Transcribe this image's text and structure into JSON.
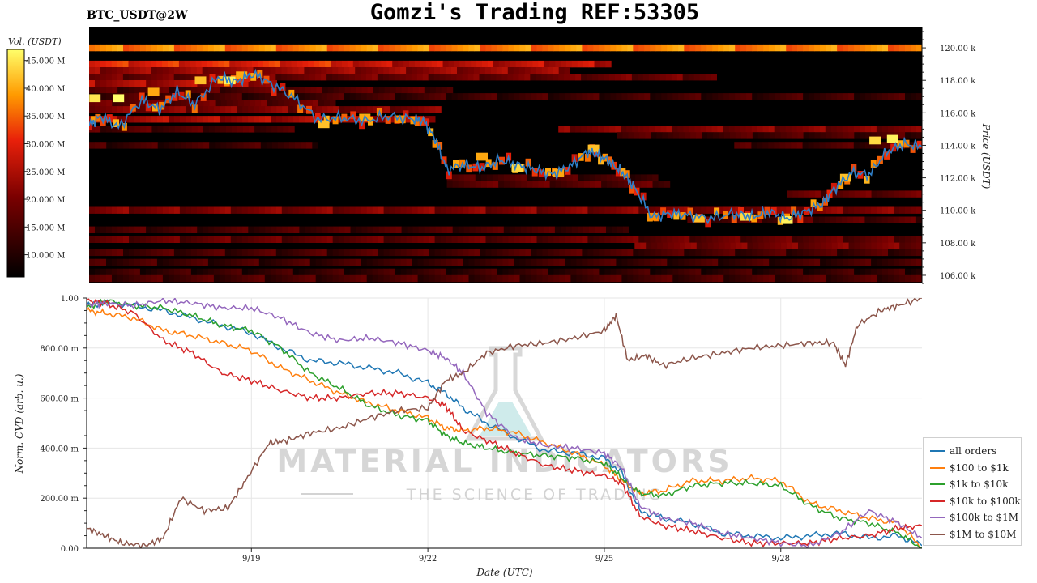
{
  "title": "Gomzi's Trading REF:53305",
  "symbol": "BTC_USDT@2W",
  "watermark": {
    "line1": "MATERIAL INDICATORS",
    "line2": "THE SCIENCE OF TRADING"
  },
  "chart_data": [
    {
      "type": "heatmap",
      "colorbar_label": "Vol. (USDT)",
      "colorbar_ticks": [
        "45.000 M",
        "40.000 M",
        "35.000 M",
        "30.000 M",
        "25.000 M",
        "20.000 M",
        "15.000 M",
        "10.000 M"
      ],
      "colorbar_values": [
        45,
        40,
        35,
        30,
        25,
        20,
        15,
        10
      ],
      "colorbar_range": [
        6,
        47
      ],
      "ylabel": "Price (USDT)",
      "y_ticks": [
        "120.00 k",
        "118.00 k",
        "116.00 k",
        "114.00 k",
        "112.00 k",
        "110.00 k",
        "108.00 k",
        "106.00 k"
      ],
      "y_tick_values": [
        120,
        118,
        116,
        114,
        112,
        110,
        108,
        106
      ],
      "ylim": [
        105.5,
        121.3
      ],
      "x_days": [
        16.3,
        30.5
      ],
      "price_line": {
        "color": "#2f7fc8",
        "x": [
          16.3,
          16.5,
          16.8,
          17.2,
          17.5,
          17.8,
          18.1,
          18.5,
          18.8,
          19.1,
          19.4,
          19.8,
          20.2,
          20.6,
          21.0,
          21.4,
          21.8,
          22.0,
          22.2,
          22.4,
          22.7,
          23.0,
          23.3,
          23.6,
          23.9,
          24.2,
          24.5,
          24.8,
          25.0,
          25.2,
          25.4,
          25.6,
          25.9,
          26.2,
          26.5,
          26.9,
          27.3,
          27.6,
          27.9,
          28.2,
          28.5,
          28.8,
          29.0,
          29.3,
          29.6,
          29.9,
          30.2,
          30.5
        ],
        "y": [
          115.2,
          115.8,
          115.1,
          116.8,
          116.2,
          117.3,
          116.5,
          118.2,
          117.9,
          118.4,
          117.8,
          116.9,
          115.6,
          115.7,
          115.5,
          115.8,
          115.6,
          115.5,
          114.4,
          112.5,
          112.8,
          112.6,
          113.1,
          112.8,
          112.5,
          112.2,
          112.7,
          113.6,
          113.4,
          112.9,
          112.3,
          111.4,
          109.6,
          109.8,
          109.7,
          109.5,
          109.8,
          109.6,
          109.9,
          109.5,
          109.9,
          110.4,
          111.3,
          112.3,
          112.2,
          113.6,
          114.1,
          113.9
        ]
      },
      "liquidity_bands": [
        {
          "price": 120.0,
          "x0": 16.3,
          "x1": 30.5,
          "level": 37
        },
        {
          "price": 119.0,
          "x0": 16.3,
          "x1": 20.8,
          "level": 30
        },
        {
          "price": 119.0,
          "x0": 20.8,
          "x1": 25.2,
          "level": 26
        },
        {
          "price": 118.6,
          "x0": 16.3,
          "x1": 24.5,
          "level": 22
        },
        {
          "price": 118.2,
          "x0": 16.3,
          "x1": 27.0,
          "level": 18
        },
        {
          "price": 117.8,
          "x0": 16.3,
          "x1": 19.5,
          "level": 24
        },
        {
          "price": 117.4,
          "x0": 16.3,
          "x1": 22.5,
          "level": 15
        },
        {
          "price": 117.0,
          "x0": 16.3,
          "x1": 30.5,
          "level": 13
        },
        {
          "price": 116.6,
          "x0": 16.3,
          "x1": 20.5,
          "level": 17
        },
        {
          "price": 116.2,
          "x0": 16.3,
          "x1": 22.3,
          "level": 20
        },
        {
          "price": 115.6,
          "x0": 16.3,
          "x1": 22.2,
          "level": 24
        },
        {
          "price": 115.0,
          "x0": 16.3,
          "x1": 19.8,
          "level": 15
        },
        {
          "price": 115.0,
          "x0": 24.3,
          "x1": 30.5,
          "level": 20
        },
        {
          "price": 114.6,
          "x0": 25.3,
          "x1": 30.5,
          "level": 14
        },
        {
          "price": 114.0,
          "x0": 16.3,
          "x1": 20.2,
          "level": 13
        },
        {
          "price": 114.0,
          "x0": 27.3,
          "x1": 30.5,
          "level": 14
        },
        {
          "price": 112.0,
          "x0": 22.4,
          "x1": 26.0,
          "level": 14
        },
        {
          "price": 111.6,
          "x0": 22.4,
          "x1": 26.2,
          "level": 16
        },
        {
          "price": 111.0,
          "x0": 28.2,
          "x1": 30.5,
          "level": 17
        },
        {
          "price": 110.0,
          "x0": 16.3,
          "x1": 30.5,
          "level": 20
        },
        {
          "price": 109.4,
          "x0": 26.5,
          "x1": 30.5,
          "level": 15
        },
        {
          "price": 108.8,
          "x0": 16.3,
          "x1": 25.5,
          "level": 14
        },
        {
          "price": 108.2,
          "x0": 16.3,
          "x1": 30.5,
          "level": 17
        },
        {
          "price": 107.8,
          "x0": 25.6,
          "x1": 30.5,
          "level": 19
        },
        {
          "price": 107.4,
          "x0": 16.3,
          "x1": 30.5,
          "level": 14
        },
        {
          "price": 106.8,
          "x0": 16.3,
          "x1": 30.5,
          "level": 13
        },
        {
          "price": 106.2,
          "x0": 16.3,
          "x1": 30.5,
          "level": 12
        },
        {
          "price": 105.8,
          "x0": 16.3,
          "x1": 30.5,
          "level": 14
        }
      ],
      "hot_cells": [
        {
          "x": 16.4,
          "price": 116.9,
          "level": 45
        },
        {
          "x": 16.8,
          "price": 116.9,
          "level": 47
        },
        {
          "x": 17.4,
          "price": 117.3,
          "level": 40
        },
        {
          "x": 18.2,
          "price": 118.0,
          "level": 42
        },
        {
          "x": 18.7,
          "price": 118.0,
          "level": 46
        },
        {
          "x": 18.9,
          "price": 118.3,
          "level": 40
        },
        {
          "x": 20.3,
          "price": 115.3,
          "level": 42
        },
        {
          "x": 21.0,
          "price": 115.7,
          "level": 40
        },
        {
          "x": 21.6,
          "price": 115.6,
          "level": 38
        },
        {
          "x": 23.0,
          "price": 113.3,
          "level": 40
        },
        {
          "x": 23.6,
          "price": 112.6,
          "level": 44
        },
        {
          "x": 24.3,
          "price": 112.3,
          "level": 40
        },
        {
          "x": 24.9,
          "price": 113.8,
          "level": 42
        },
        {
          "x": 25.9,
          "price": 109.6,
          "level": 38
        },
        {
          "x": 26.7,
          "price": 109.5,
          "level": 42
        },
        {
          "x": 27.5,
          "price": 109.6,
          "level": 44
        },
        {
          "x": 28.2,
          "price": 109.4,
          "level": 46
        },
        {
          "x": 29.2,
          "price": 112.0,
          "level": 42
        },
        {
          "x": 29.7,
          "price": 114.3,
          "level": 44
        },
        {
          "x": 30.0,
          "price": 114.4,
          "level": 46
        }
      ]
    },
    {
      "type": "line",
      "ylabel": "Norm. CVD (arb. u.)",
      "xlabel": "Date (UTC)",
      "x_ticks": [
        "9/19",
        "9/22",
        "9/25",
        "9/28"
      ],
      "x_tick_values": [
        19,
        22,
        25,
        28
      ],
      "xlim": [
        16.2,
        30.4
      ],
      "y_ticks": [
        "1.00",
        "800.00 m",
        "600.00 m",
        "400.00 m",
        "200.00 m",
        "0.00"
      ],
      "y_tick_values": [
        1.0,
        0.8,
        0.6,
        0.4,
        0.2,
        0.0
      ],
      "ylim": [
        0,
        1.0
      ],
      "grid": true,
      "legend_position": "right",
      "series": [
        {
          "name": "all orders",
          "color": "#1f77b4",
          "x": [
            16.2,
            16.5,
            17.0,
            17.5,
            18.0,
            18.5,
            19.0,
            19.5,
            20.0,
            20.5,
            21.0,
            21.5,
            22.0,
            22.3,
            22.6,
            23.0,
            23.5,
            24.0,
            24.5,
            25.0,
            25.3,
            25.6,
            26.0,
            26.5,
            27.0,
            27.5,
            28.0,
            28.5,
            29.0,
            29.5,
            30.0,
            30.4
          ],
          "y": [
            0.97,
            0.98,
            0.97,
            0.95,
            0.92,
            0.89,
            0.86,
            0.8,
            0.75,
            0.74,
            0.72,
            0.7,
            0.66,
            0.62,
            0.56,
            0.5,
            0.44,
            0.39,
            0.38,
            0.36,
            0.3,
            0.15,
            0.12,
            0.1,
            0.06,
            0.05,
            0.04,
            0.05,
            0.06,
            0.04,
            0.05,
            0.01
          ]
        },
        {
          "name": "$100 to $1k",
          "color": "#ff7f0e",
          "x": [
            16.2,
            16.5,
            17.0,
            17.5,
            18.0,
            18.5,
            19.0,
            19.5,
            20.0,
            20.5,
            21.0,
            21.5,
            22.0,
            22.3,
            22.6,
            23.0,
            23.5,
            24.0,
            24.5,
            25.0,
            25.3,
            25.6,
            26.0,
            26.5,
            27.0,
            27.5,
            28.0,
            28.5,
            29.0,
            29.5,
            30.0,
            30.4
          ],
          "y": [
            0.95,
            0.94,
            0.92,
            0.87,
            0.85,
            0.82,
            0.79,
            0.72,
            0.67,
            0.62,
            0.58,
            0.55,
            0.52,
            0.48,
            0.47,
            0.48,
            0.46,
            0.42,
            0.38,
            0.33,
            0.27,
            0.22,
            0.23,
            0.27,
            0.27,
            0.28,
            0.27,
            0.18,
            0.15,
            0.12,
            0.1,
            0.0
          ]
        },
        {
          "name": "$1k to $10k",
          "color": "#2ca02c",
          "x": [
            16.2,
            16.5,
            17.0,
            17.5,
            18.0,
            18.5,
            19.0,
            19.5,
            20.0,
            20.5,
            21.0,
            21.5,
            22.0,
            22.3,
            22.6,
            23.0,
            23.5,
            24.0,
            24.5,
            25.0,
            25.3,
            25.6,
            26.0,
            26.5,
            27.0,
            27.5,
            28.0,
            28.5,
            29.0,
            29.5,
            30.0,
            30.4
          ],
          "y": [
            0.96,
            0.99,
            0.97,
            0.96,
            0.93,
            0.89,
            0.87,
            0.8,
            0.7,
            0.64,
            0.57,
            0.53,
            0.51,
            0.45,
            0.42,
            0.4,
            0.38,
            0.37,
            0.36,
            0.34,
            0.28,
            0.22,
            0.21,
            0.25,
            0.26,
            0.26,
            0.25,
            0.17,
            0.12,
            0.1,
            0.06,
            0.0
          ]
        },
        {
          "name": "$10k to $100k",
          "color": "#d62728",
          "x": [
            16.2,
            16.5,
            17.0,
            17.5,
            18.0,
            18.5,
            19.0,
            19.5,
            20.0,
            20.5,
            21.0,
            21.5,
            22.0,
            22.3,
            22.6,
            23.0,
            23.5,
            24.0,
            24.5,
            25.0,
            25.3,
            25.6,
            26.0,
            26.5,
            27.0,
            27.5,
            28.0,
            28.5,
            29.0,
            29.5,
            30.0,
            30.4
          ],
          "y": [
            0.99,
            0.98,
            0.94,
            0.83,
            0.78,
            0.7,
            0.67,
            0.63,
            0.6,
            0.6,
            0.62,
            0.62,
            0.6,
            0.57,
            0.47,
            0.43,
            0.38,
            0.33,
            0.31,
            0.29,
            0.26,
            0.13,
            0.09,
            0.07,
            0.04,
            0.02,
            0.02,
            0.02,
            0.04,
            0.05,
            0.08,
            0.09
          ]
        },
        {
          "name": "$100k to $1M",
          "color": "#9467bd",
          "x": [
            16.2,
            16.5,
            17.0,
            17.5,
            18.0,
            18.5,
            19.0,
            19.5,
            20.0,
            20.5,
            21.0,
            21.5,
            22.0,
            22.3,
            22.6,
            23.0,
            23.5,
            24.0,
            24.5,
            25.0,
            25.3,
            25.6,
            26.0,
            26.5,
            27.0,
            27.5,
            28.0,
            28.5,
            29.0,
            29.5,
            30.0,
            30.4
          ],
          "y": [
            0.97,
            0.98,
            0.97,
            0.99,
            0.98,
            0.96,
            0.96,
            0.92,
            0.86,
            0.83,
            0.84,
            0.82,
            0.79,
            0.76,
            0.7,
            0.54,
            0.44,
            0.41,
            0.4,
            0.38,
            0.32,
            0.17,
            0.12,
            0.1,
            0.06,
            0.04,
            0.02,
            0.01,
            0.06,
            0.15,
            0.1,
            0.04
          ]
        },
        {
          "name": "$1M to $10M",
          "color": "#8c564b",
          "x": [
            16.2,
            16.5,
            16.8,
            17.2,
            17.5,
            17.8,
            18.2,
            18.6,
            18.9,
            19.3,
            19.6,
            20.0,
            20.5,
            21.0,
            21.5,
            22.0,
            22.3,
            22.6,
            23.0,
            23.5,
            24.0,
            24.5,
            25.0,
            25.2,
            25.4,
            25.7,
            26.0,
            26.5,
            27.0,
            27.5,
            28.0,
            28.5,
            28.9,
            29.1,
            29.3,
            29.7,
            30.0,
            30.4
          ],
          "y": [
            0.08,
            0.05,
            0.02,
            0.01,
            0.04,
            0.2,
            0.15,
            0.16,
            0.27,
            0.42,
            0.43,
            0.46,
            0.48,
            0.52,
            0.55,
            0.56,
            0.67,
            0.7,
            0.78,
            0.81,
            0.82,
            0.84,
            0.87,
            0.93,
            0.75,
            0.77,
            0.73,
            0.76,
            0.78,
            0.8,
            0.81,
            0.82,
            0.82,
            0.73,
            0.89,
            0.95,
            0.97,
            1.0
          ]
        }
      ]
    }
  ]
}
